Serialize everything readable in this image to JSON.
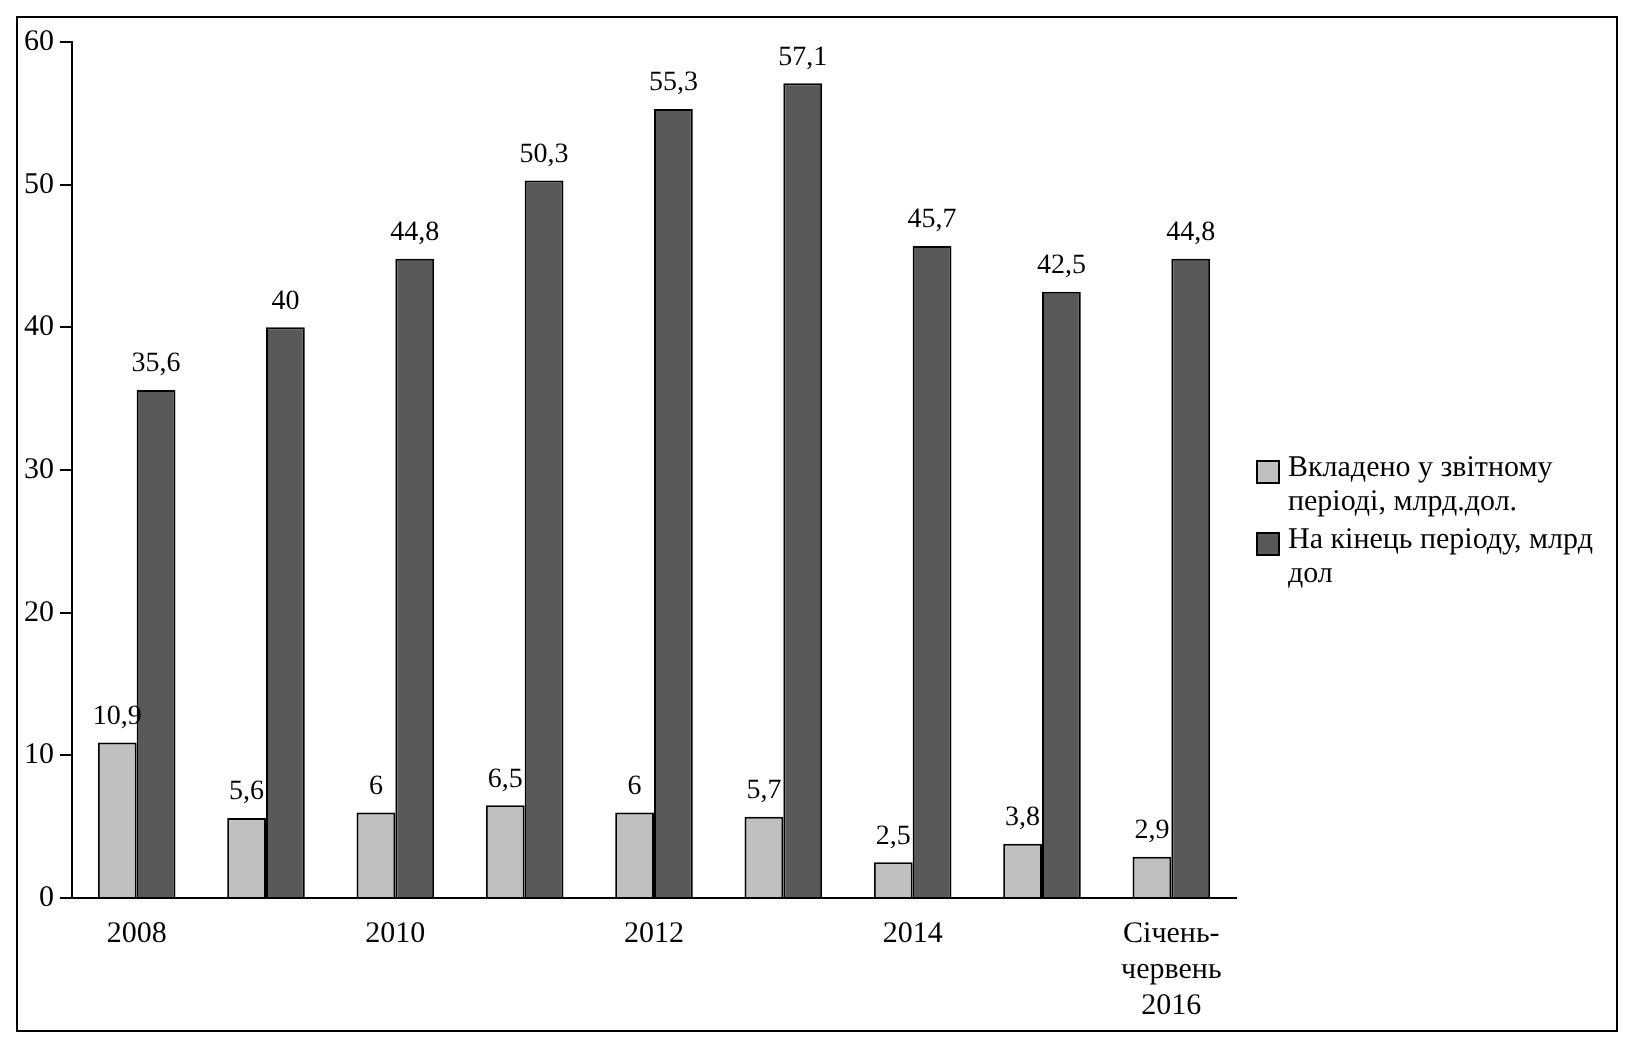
{
  "chart_data": {
    "type": "bar",
    "categories": [
      "2008",
      null,
      "2010",
      null,
      "2012",
      null,
      "2014",
      null,
      "Січень-червень 2016"
    ],
    "series": [
      {
        "name": "Вкладено у звітному періоді, млрд.дол.",
        "color": "#c0c0c0",
        "values": [
          10.9,
          5.6,
          6,
          6.5,
          6,
          5.7,
          2.5,
          3.8,
          2.9
        ],
        "value_labels": [
          "10,9",
          "5,6",
          "6",
          "6,5",
          "6",
          "5,7",
          "2,5",
          "3,8",
          "2,9"
        ]
      },
      {
        "name": "На кінець періоду, млрд дол",
        "color": "#595959",
        "values": [
          35.6,
          40,
          44.8,
          50.3,
          55.3,
          57.1,
          45.7,
          42.5,
          44.8
        ],
        "value_labels": [
          "35,6",
          "40",
          "44,8",
          "50,3",
          "55,3",
          "57,1",
          "45,7",
          "42,5",
          "44,8"
        ]
      }
    ],
    "ylim": [
      0,
      60
    ],
    "yticks": [
      0,
      10,
      20,
      30,
      40,
      50,
      60
    ],
    "grid": false,
    "legend": "right"
  }
}
